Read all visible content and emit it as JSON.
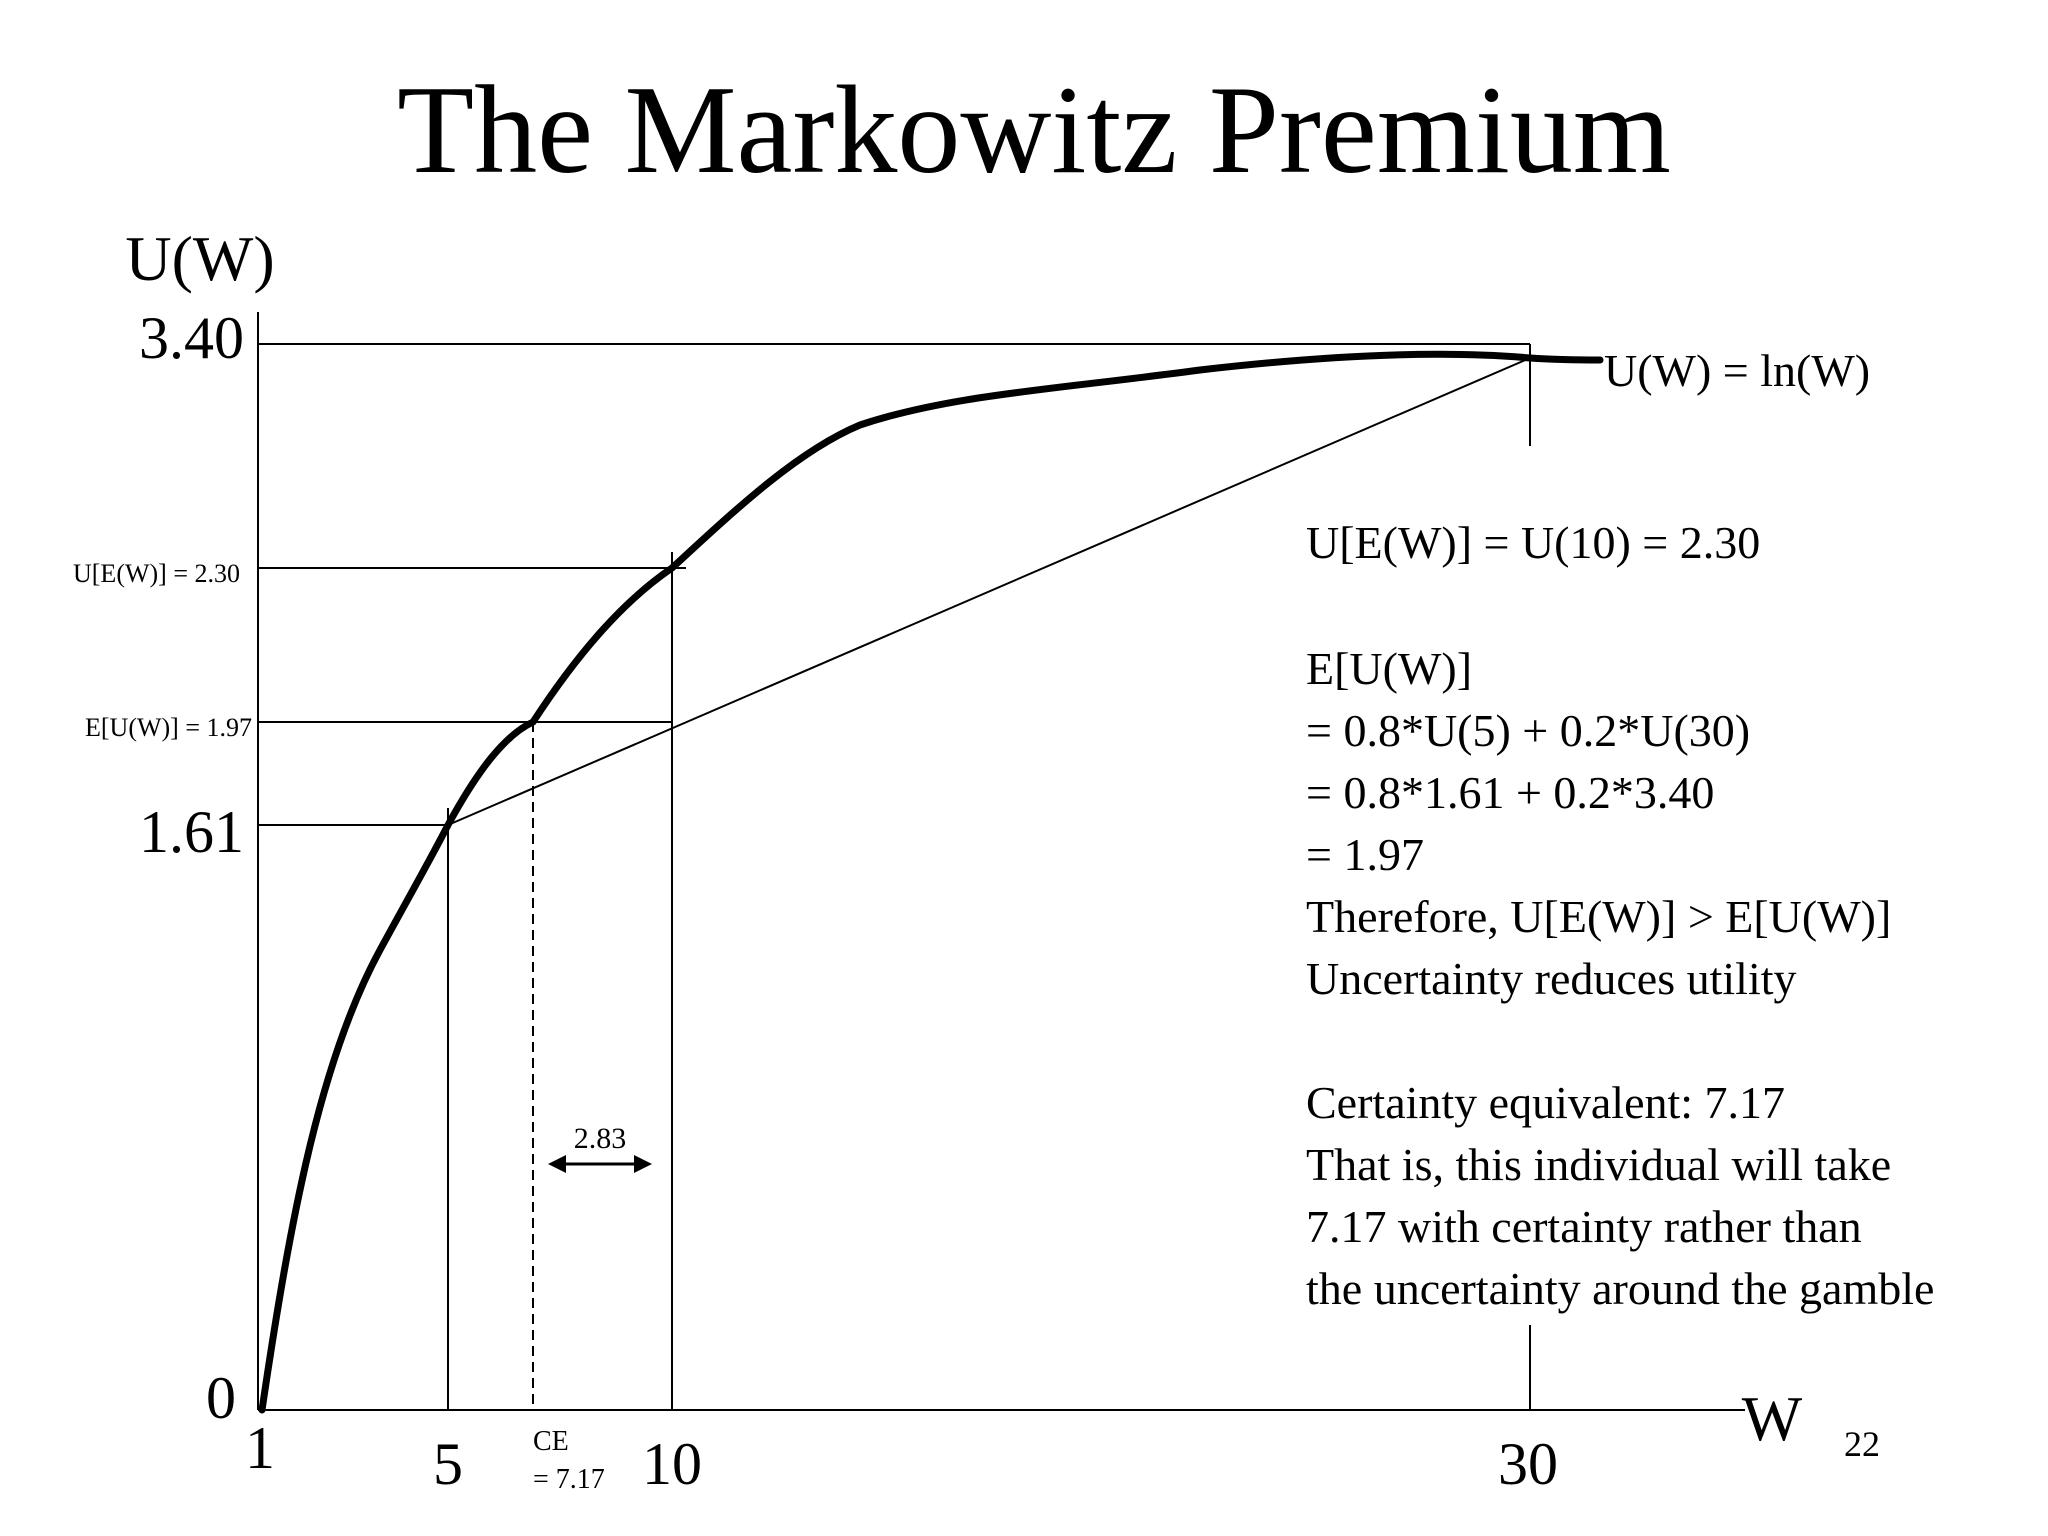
{
  "slide": {
    "title": "The Markowitz Premium",
    "page_number": "22"
  },
  "axes": {
    "y_title": "U(W)",
    "x_title": "W"
  },
  "ticks": {
    "y_340": "3.40",
    "y_161": "1.61",
    "y_0": "0",
    "x_1": "1",
    "x_5": "5",
    "x_10": "10",
    "x_30": "30"
  },
  "labels": {
    "uew": "U[E(W)] = 2.30",
    "euw": "E[U(W)] = 1.97",
    "ce_line1": "CE",
    "ce_line2": "= 7.17",
    "premium": "2.83",
    "curve": "U(W) = ln(W)"
  },
  "explanation": {
    "line1": "U[E(W)] = U(10) = 2.30",
    "line2": "E[U(W)]",
    "line3": "= 0.8*U(5) + 0.2*U(30)",
    "line4": "= 0.8*1.61 + 0.2*3.40",
    "line5": "= 1.97",
    "line6": "Therefore, U[E(W)] > E[U(W)]",
    "line7": "Uncertainty reduces utility",
    "line8": "Certainty equivalent: 7.17",
    "line9": "That is, this individual will take",
    "line10": "7.17 with certainty rather than",
    "line11": "the uncertainty around the gamble"
  },
  "chart_data": {
    "type": "line",
    "function": "U(W) = ln(W)",
    "points": [
      {
        "w": 1,
        "u": 0
      },
      {
        "w": 5,
        "u": 1.61
      },
      {
        "w": 7.17,
        "u": 1.97
      },
      {
        "w": 10,
        "u": 2.3
      },
      {
        "w": 30,
        "u": 3.4
      }
    ],
    "chord": {
      "from": {
        "w": 5,
        "u": 1.61
      },
      "to": {
        "w": 30,
        "u": 3.4
      }
    },
    "certainty_equivalent": 7.17,
    "expected_wealth": 10,
    "markowitz_premium": 2.83
  }
}
